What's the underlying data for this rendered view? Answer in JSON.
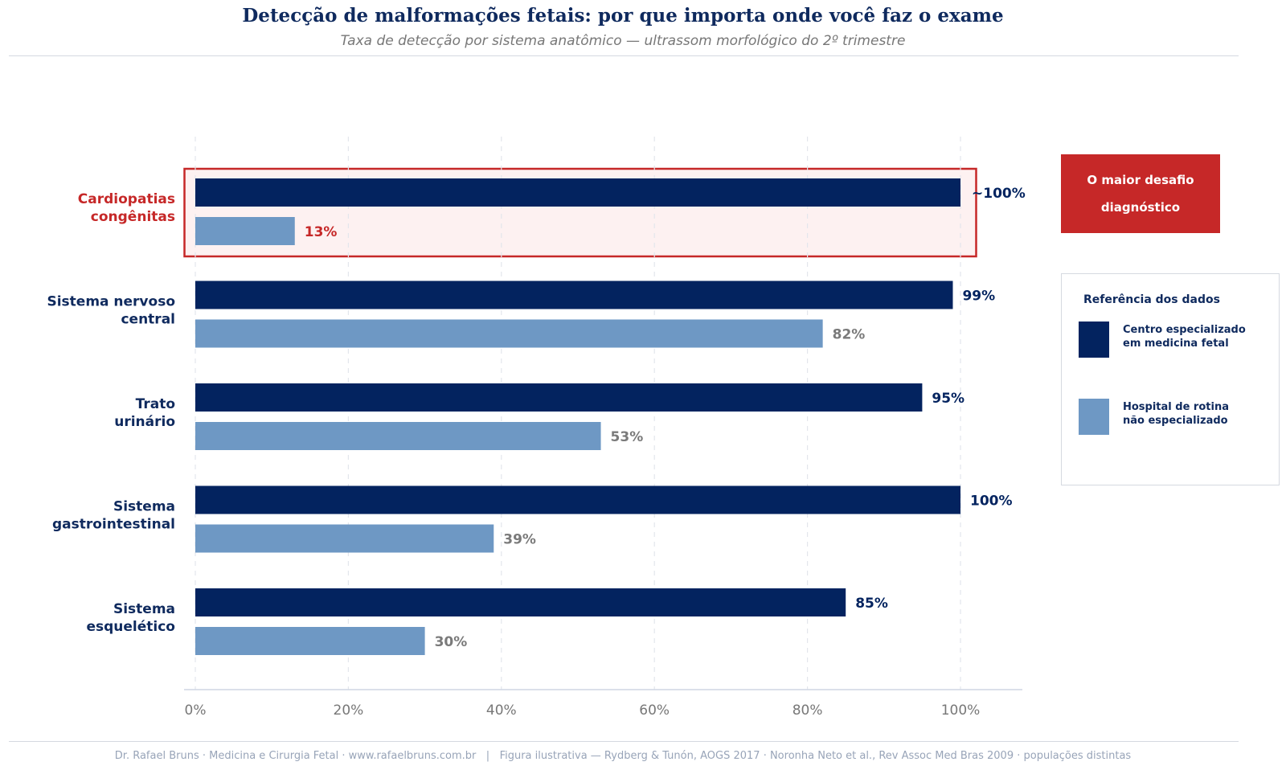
{
  "header": {
    "title": "Detecção de malformações fetais: por que importa onde você faz o exame",
    "subtitle": "Taxa de detecção por sistema anatômico — ultrassom morfológico do 2º trimestre"
  },
  "footer": {
    "text": "Dr. Rafael Bruns · Medicina e Cirurgia Fetal · www.rafaelbruns.com.br   |   Figura ilustrativa — Rydberg & Tunón, AOGS 2017 · Noronha Neto et al., Rev Assoc Med Bras 2009 · populações distintas"
  },
  "callout": {
    "line1": "O maior desafio",
    "line2": "diagnóstico"
  },
  "legend": {
    "title": "Referência dos dados",
    "items": [
      {
        "label": "Centro especializado\nem medicina fetal",
        "color": "#03235f"
      },
      {
        "label": "Hospital de rotina\nnão especializado",
        "color": "#6e98c4"
      }
    ]
  },
  "colors": {
    "specialized": "#03235f",
    "routine": "#6e98c4",
    "highlight": "#c62828",
    "highlight_fill": "#fdf1f1",
    "axis_text": "#777777",
    "category_text": "#0f2a5e",
    "routine_label": "#7a7a7a"
  },
  "chart_data": {
    "type": "bar",
    "orientation": "horizontal",
    "categories": [
      "Cardiopatias\ncongênitas",
      "Sistema nervoso\ncentral",
      "Trato\nurinário",
      "Sistema\ngastrointestinal",
      "Sistema\nesquelético"
    ],
    "series": [
      {
        "name": "Centro especializado em medicina fetal",
        "values": [
          100,
          99,
          95,
          100,
          85
        ],
        "labels": [
          "~100%",
          "99%",
          "95%",
          "100%",
          "85%"
        ]
      },
      {
        "name": "Hospital de rotina não especializado",
        "values": [
          13,
          82,
          53,
          39,
          30
        ],
        "labels": [
          "13%",
          "82%",
          "53%",
          "39%",
          "30%"
        ]
      }
    ],
    "highlight_category": 0,
    "xlim": [
      0,
      108
    ],
    "xticks": [
      0,
      20,
      40,
      60,
      80,
      100
    ],
    "xtick_labels": [
      "0%",
      "20%",
      "40%",
      "60%",
      "80%",
      "100%"
    ],
    "grid": "vertical dashed",
    "legend": "right"
  }
}
